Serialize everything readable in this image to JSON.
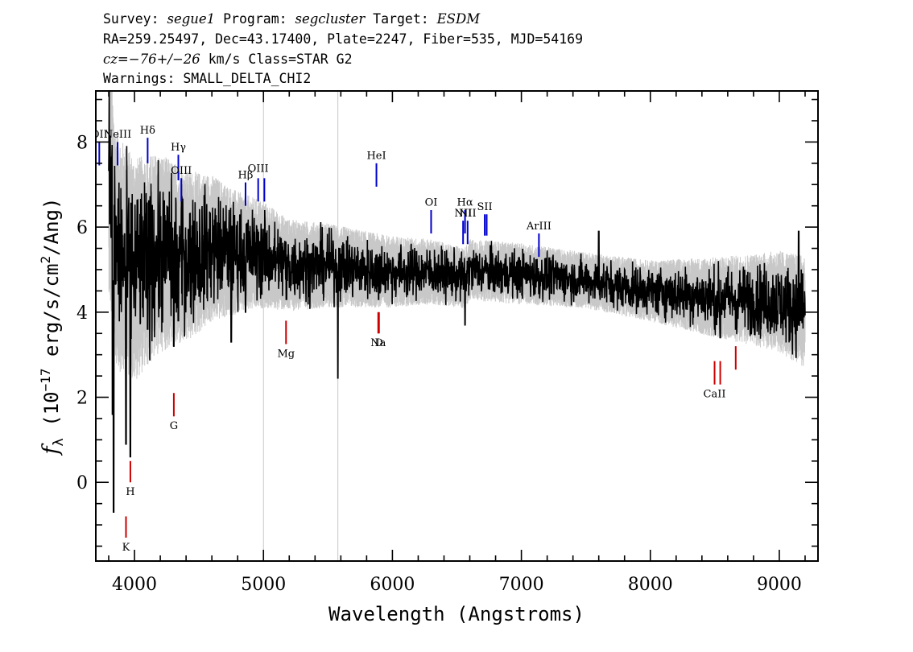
{
  "header": {
    "line1": [
      {
        "t": "Survey: ",
        "i": false
      },
      {
        "t": "segue1",
        "i": true
      },
      {
        "t": " Program: ",
        "i": false
      },
      {
        "t": "segcluster",
        "i": true
      },
      {
        "t": " Target: ",
        "i": false
      },
      {
        "t": "ESDM",
        "i": true
      }
    ],
    "line2": "RA=259.25497, Dec=43.17400, Plate=2247, Fiber=535, MJD=54169",
    "line3": [
      {
        "t": "cz=−76+/−26",
        "i": true
      },
      {
        "t": " km/s Class=STAR G2",
        "i": false
      }
    ],
    "line4": "Warnings: SMALL_DELTA_CHI2"
  },
  "chart_data": {
    "type": "line",
    "xlabel": "Wavelength (Angstroms)",
    "ylabel_main": "f",
    "ylabel_sub": "λ",
    "ylabel_units": " (10",
    "ylabel_exp": "−17",
    "ylabel_units2": " erg/s/cm",
    "ylabel_exp2": "2",
    "ylabel_units3": "/Ang)",
    "xlim": [
      3700,
      9300
    ],
    "ylim": [
      -1.85,
      9.2
    ],
    "xticks": [
      4000,
      5000,
      6000,
      7000,
      8000,
      9000
    ],
    "yticks": [
      0,
      2,
      4,
      6,
      8
    ],
    "spectrum_range": [
      3800,
      9200
    ],
    "spectrum_anchors": [
      [
        3800,
        7.4
      ],
      [
        3850,
        5.6
      ],
      [
        3900,
        5.3
      ],
      [
        4000,
        5.0
      ],
      [
        4100,
        5.2
      ],
      [
        4200,
        5.4
      ],
      [
        4400,
        5.3
      ],
      [
        4600,
        5.5
      ],
      [
        4800,
        5.4
      ],
      [
        5000,
        5.35
      ],
      [
        5200,
        5.1
      ],
      [
        5500,
        5.1
      ],
      [
        5800,
        5.0
      ],
      [
        6000,
        4.95
      ],
      [
        6300,
        4.95
      ],
      [
        6560,
        4.8
      ],
      [
        6600,
        5.0
      ],
      [
        7000,
        4.9
      ],
      [
        7500,
        4.75
      ],
      [
        8000,
        4.5
      ],
      [
        8500,
        4.35
      ],
      [
        9000,
        4.25
      ],
      [
        9200,
        4.0
      ]
    ],
    "spectrum_features": [
      [
        3830,
        1.6
      ],
      [
        3838,
        -0.7
      ],
      [
        3890,
        4.2
      ],
      [
        3934,
        0.9
      ],
      [
        3968,
        0.6
      ],
      [
        4102,
        3.6
      ],
      [
        4305,
        3.2
      ],
      [
        4340,
        3.8
      ],
      [
        4750,
        3.3
      ],
      [
        4861,
        4.0
      ],
      [
        5178,
        4.3
      ],
      [
        5577,
        2.45
      ],
      [
        5893,
        4.3
      ],
      [
        6563,
        3.7
      ],
      [
        7600,
        5.9
      ],
      [
        8500,
        3.6
      ],
      [
        8542,
        3.4
      ],
      [
        8662,
        3.6
      ],
      [
        9150,
        5.9
      ],
      [
        9180,
        4.9
      ]
    ],
    "noise_envelope": [
      [
        3800,
        2.4
      ],
      [
        4000,
        2.2
      ],
      [
        4400,
        1.7
      ],
      [
        4800,
        1.2
      ],
      [
        5200,
        0.9
      ],
      [
        5600,
        0.8
      ],
      [
        6000,
        0.7
      ],
      [
        6500,
        0.6
      ],
      [
        7000,
        0.6
      ],
      [
        7500,
        0.55
      ],
      [
        8000,
        0.6
      ],
      [
        8400,
        0.75
      ],
      [
        8800,
        0.9
      ],
      [
        9200,
        1.1
      ]
    ],
    "emission_lines": [
      {
        "label": "OII",
        "x": 3727,
        "y0": 7.45,
        "y1": 8.0,
        "ly": 8.1
      },
      {
        "label": "NeIII",
        "x": 3869,
        "y0": 7.45,
        "y1": 8.0,
        "ly": 8.1
      },
      {
        "label": "Hδ",
        "x": 4102,
        "y0": 7.5,
        "y1": 8.1,
        "ly": 8.2
      },
      {
        "label": "Hγ",
        "x": 4340,
        "y0": 7.1,
        "y1": 7.7,
        "ly": 7.8
      },
      {
        "label": "OIII",
        "x": 4363,
        "y0": 6.6,
        "y1": 7.15,
        "ly": 7.25
      },
      {
        "label": "Hβ",
        "x": 4861,
        "y0": 6.5,
        "y1": 7.05,
        "ly": 7.15
      },
      {
        "label": "OIII",
        "x": 4959,
        "y0": 6.6,
        "y1": 7.15,
        "ly": 7.3
      },
      {
        "label": "",
        "x": 5007,
        "y0": 6.6,
        "y1": 7.15,
        "ly": 7.3
      },
      {
        "label": "HeI",
        "x": 5876,
        "y0": 6.95,
        "y1": 7.5,
        "ly": 7.6
      },
      {
        "label": "OI",
        "x": 6300,
        "y0": 5.85,
        "y1": 6.4,
        "ly": 6.5
      },
      {
        "label": "NII",
        "x": 6548,
        "y0": 5.6,
        "y1": 6.15,
        "ly": 6.25
      },
      {
        "label": "Hα",
        "x": 6563,
        "y0": 5.85,
        "y1": 6.4,
        "ly": 6.5
      },
      {
        "label": "NII",
        "x": 6583,
        "y0": 5.6,
        "y1": 6.15,
        "ly": 6.25
      },
      {
        "label": "SII",
        "x": 6716,
        "y0": 5.8,
        "y1": 6.3,
        "ly": 6.4
      },
      {
        "label": "",
        "x": 6731,
        "y0": 5.8,
        "y1": 6.3,
        "ly": 6.4
      },
      {
        "label": "ArIII",
        "x": 7136,
        "y0": 5.3,
        "y1": 5.85,
        "ly": 5.95
      }
    ],
    "absorption_lines": [
      {
        "label": "K",
        "x": 3934,
        "y0": -0.8,
        "y1": -1.3,
        "ly": -1.6
      },
      {
        "label": "H",
        "x": 3968,
        "y0": 0.5,
        "y1": 0.0,
        "ly": -0.3
      },
      {
        "label": "G",
        "x": 4305,
        "y0": 2.1,
        "y1": 1.55,
        "ly": 1.25
      },
      {
        "label": "Mg",
        "x": 5175,
        "y0": 3.8,
        "y1": 3.25,
        "ly": 2.95
      },
      {
        "label": "Na",
        "x": 5890,
        "y0": 4.0,
        "y1": 3.5,
        "ly": 3.2
      },
      {
        "label": "D",
        "x": 5896,
        "y0": 4.0,
        "y1": 3.5,
        "ly": 3.2
      },
      {
        "label": "CaII",
        "x": 8498,
        "y0": 2.85,
        "y1": 2.3,
        "ly": 2.0
      },
      {
        "label": "",
        "x": 8542,
        "y0": 2.85,
        "y1": 2.3,
        "ly": 2.0
      },
      {
        "label": "",
        "x": 8662,
        "y0": 3.2,
        "y1": 2.65,
        "ly": 2.0
      }
    ],
    "colors": {
      "spectrum": "#000000",
      "noise": "#c8c8c8",
      "emission": "#0000cc",
      "absorption": "#cc0000",
      "skyline": "#c8c8c8"
    },
    "sky_lines": [
      5000,
      5577
    ]
  }
}
